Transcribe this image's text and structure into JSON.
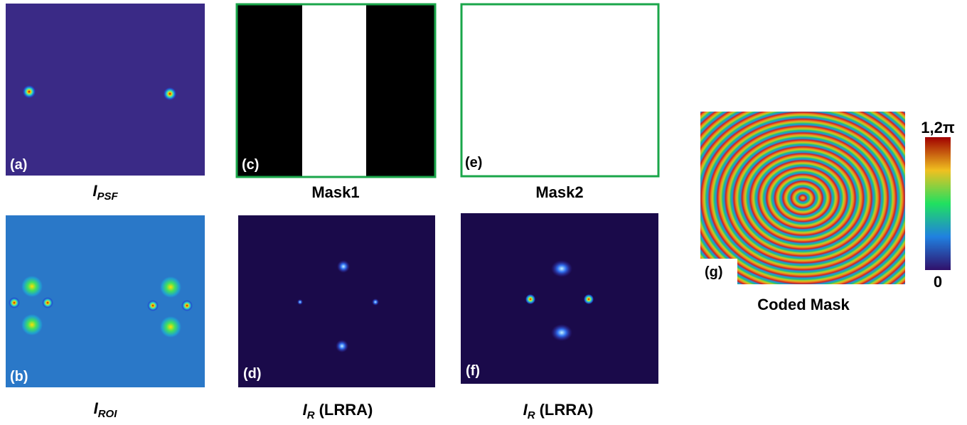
{
  "panels": [
    {
      "label": "(a)",
      "caption": {
        "main": "I",
        "sub": "PSF"
      }
    },
    {
      "label": "(b)",
      "caption": {
        "main": "I",
        "sub": "ROI"
      }
    },
    {
      "label": "(c)",
      "caption": {
        "main": "Mask1"
      }
    },
    {
      "label": "(d)",
      "caption": {
        "main": "I",
        "sub": "R",
        "suffix": "(LRRA)"
      }
    },
    {
      "label": "(e)",
      "caption": {
        "main": "Mask2"
      }
    },
    {
      "label": "(f)",
      "caption": {
        "main": "I",
        "sub": "R",
        "suffix": "(LRRA)"
      }
    },
    {
      "label": "(g)",
      "caption": {
        "main": "Coded Mask"
      }
    }
  ],
  "colorbar": {
    "max_label": "1,2π",
    "min_label": "0"
  }
}
